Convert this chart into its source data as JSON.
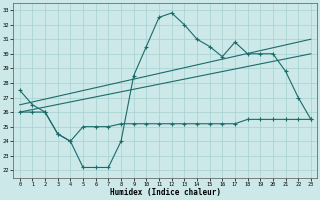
{
  "xlabel": "Humidex (Indice chaleur)",
  "xlim": [
    -0.5,
    23.5
  ],
  "ylim": [
    21.5,
    33.5
  ],
  "xticks": [
    0,
    1,
    2,
    3,
    4,
    5,
    6,
    7,
    8,
    9,
    10,
    11,
    12,
    13,
    14,
    15,
    16,
    17,
    18,
    19,
    20,
    21,
    22,
    23
  ],
  "yticks": [
    22,
    23,
    24,
    25,
    26,
    27,
    28,
    29,
    30,
    31,
    32,
    33
  ],
  "background_color": "#cce8e8",
  "line_color": "#1a6b6b",
  "grid_color": "#a8d0d0",
  "series": [
    {
      "x": [
        0,
        1,
        2,
        3,
        4,
        5,
        6,
        7,
        8,
        9,
        10,
        11,
        12,
        13,
        14,
        15,
        16,
        17,
        18,
        19,
        20,
        21,
        22,
        23
      ],
      "y": [
        27.5,
        26.5,
        26.0,
        24.5,
        24.0,
        22.2,
        22.2,
        22.2,
        24.0,
        28.5,
        30.5,
        32.5,
        32.8,
        32.0,
        31.0,
        30.5,
        29.8,
        30.8,
        30.0,
        30.0,
        30.0,
        28.8,
        27.0,
        25.5
      ],
      "marker": "+"
    },
    {
      "x": [
        0,
        1,
        2,
        3,
        4,
        5,
        6,
        7,
        8,
        9,
        10,
        11,
        12,
        13,
        14,
        15,
        16,
        17,
        18,
        19,
        20,
        21,
        22,
        23
      ],
      "y": [
        26.0,
        26.0,
        26.0,
        24.5,
        24.0,
        25.0,
        25.0,
        25.0,
        25.2,
        25.2,
        25.2,
        25.2,
        25.2,
        25.2,
        25.2,
        25.2,
        25.2,
        25.2,
        25.5,
        25.5,
        25.5,
        25.5,
        25.5,
        25.5
      ],
      "marker": "+"
    },
    {
      "x": [
        0,
        23
      ],
      "y": [
        26.5,
        31.0
      ],
      "marker": null
    },
    {
      "x": [
        0,
        23
      ],
      "y": [
        26.0,
        30.0
      ],
      "marker": null
    }
  ]
}
